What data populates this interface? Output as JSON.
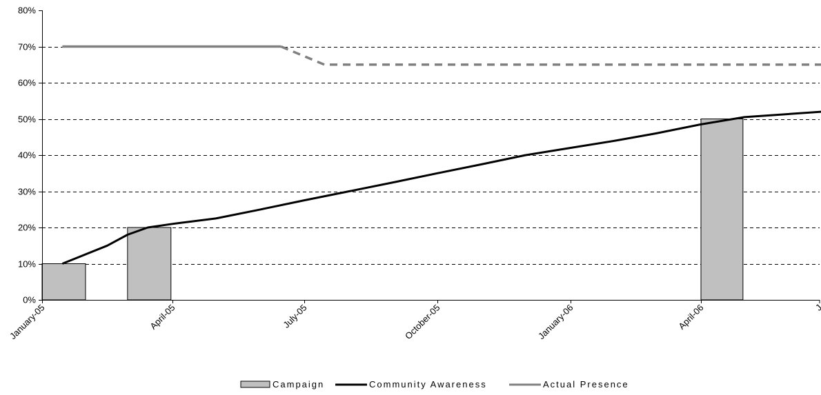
{
  "chart_data": {
    "type": "bar",
    "y_axis": {
      "range": [
        0,
        80
      ],
      "unit": "%",
      "tick_labels": [
        "0%",
        "10%",
        "20%",
        "30%",
        "40%",
        "50%",
        "60%",
        "70%",
        "80%"
      ]
    },
    "x_axis": {
      "range": [
        "2005-01-01",
        "2006-07-01"
      ],
      "tick_labels": [
        "January-05",
        "April-05",
        "July-05",
        "October-05",
        "January-06",
        "April-06",
        "J"
      ]
    },
    "grid": "horizontal dashed",
    "legend_position": "bottom-center",
    "series": [
      {
        "name": "Campaign",
        "kind": "bar",
        "color": "#c0c0c0",
        "bars": [
          {
            "start": "2005-01-01",
            "end": "2005-01-31",
            "value": 10
          },
          {
            "start": "2005-03-01",
            "end": "2005-03-31",
            "value": 20
          },
          {
            "start": "2006-04-01",
            "end": "2006-04-30",
            "value": 50
          }
        ]
      },
      {
        "name": "Community Awareness",
        "kind": "line",
        "color": "#000000",
        "points": [
          [
            "2005-01-15",
            10
          ],
          [
            "2005-02-15",
            15
          ],
          [
            "2005-03-01",
            18
          ],
          [
            "2005-03-15",
            20
          ],
          [
            "2005-04-01",
            21
          ],
          [
            "2005-05-01",
            22.5
          ],
          [
            "2005-06-01",
            25
          ],
          [
            "2005-07-01",
            27.5
          ],
          [
            "2005-08-01",
            30
          ],
          [
            "2005-09-01",
            32.5
          ],
          [
            "2005-10-01",
            35
          ],
          [
            "2005-11-01",
            37.5
          ],
          [
            "2005-12-01",
            40
          ],
          [
            "2006-01-01",
            42
          ],
          [
            "2006-02-01",
            44
          ],
          [
            "2006-03-01",
            46
          ],
          [
            "2006-04-01",
            48.5
          ],
          [
            "2006-05-01",
            50.5
          ],
          [
            "2006-07-01",
            52.2
          ]
        ]
      },
      {
        "name": "Actual Presence",
        "kind": "line",
        "color": "#808080",
        "solid_points": [
          [
            "2005-01-15",
            70
          ],
          [
            "2005-06-15",
            70
          ]
        ],
        "dashed_points": [
          [
            "2005-06-15",
            70
          ],
          [
            "2005-07-15",
            65
          ],
          [
            "2006-07-01",
            65
          ]
        ]
      }
    ]
  }
}
